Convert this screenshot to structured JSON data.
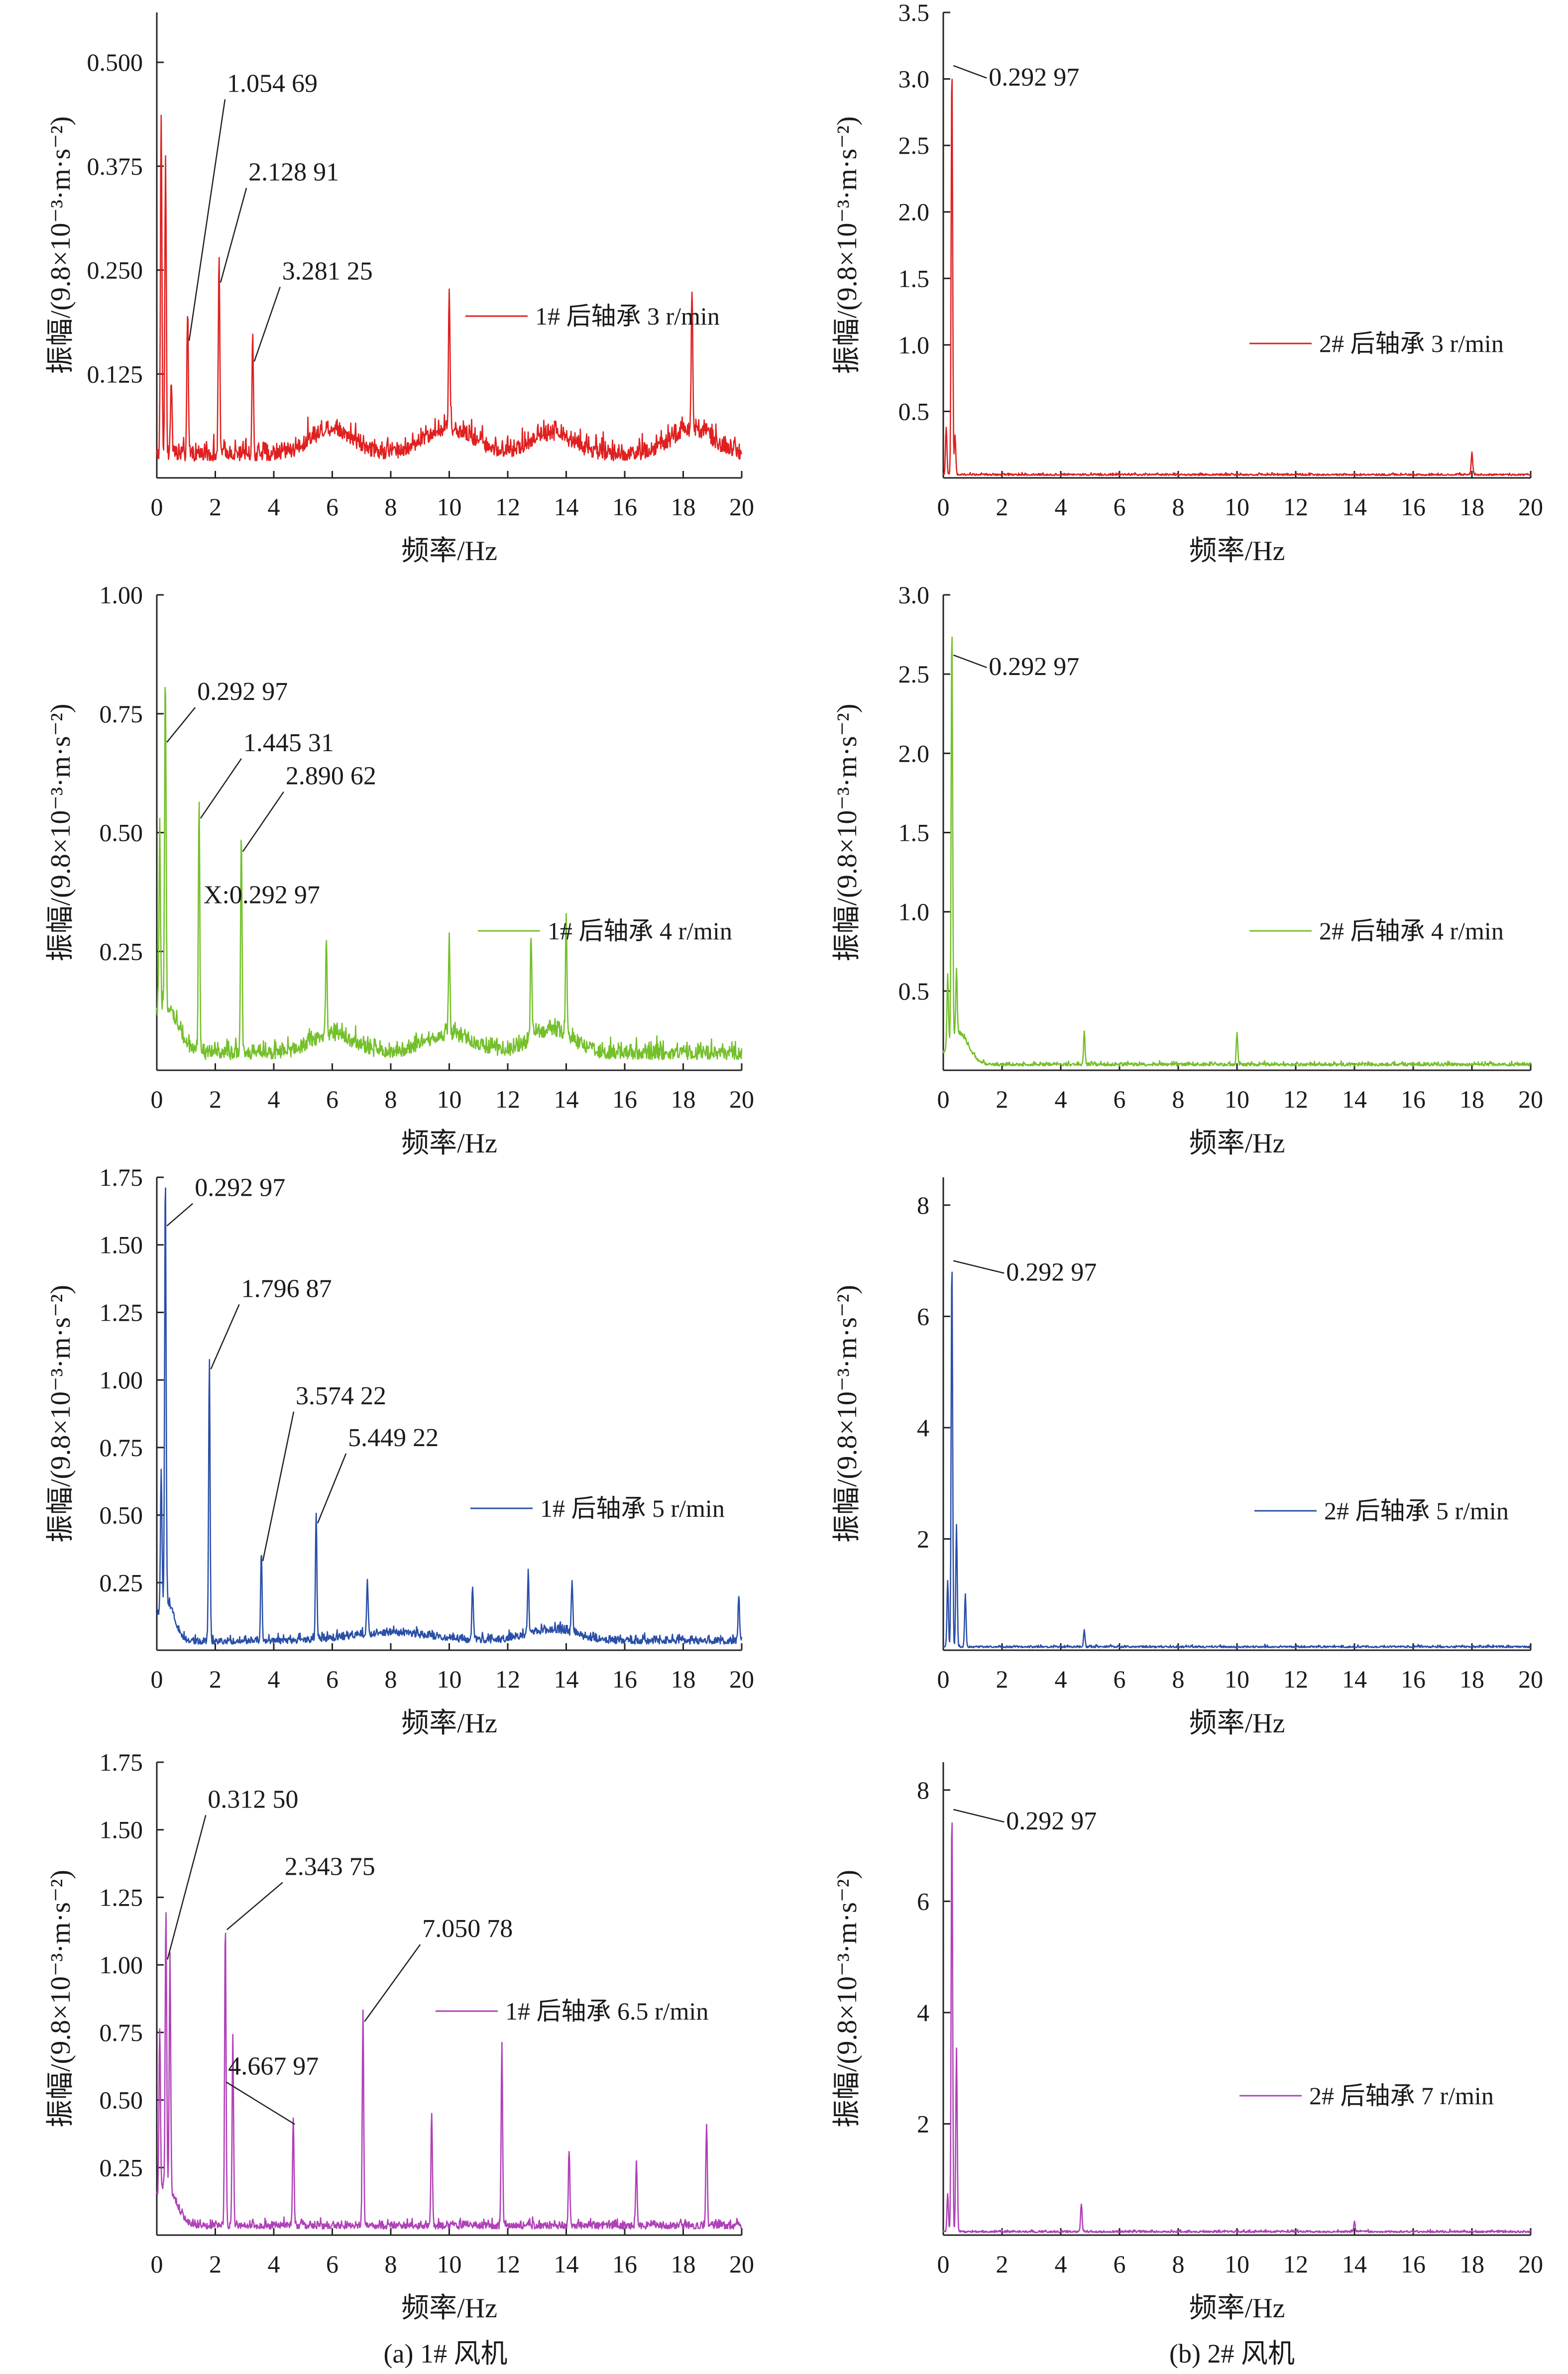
{
  "figure_captions": [
    "(a) 1# 风机",
    "(b) 2# 风机"
  ],
  "chart_data": [
    {
      "type": "line",
      "color": "#e02020",
      "xlabel": "频率/Hz",
      "ylabel": "振幅/(9.8×10⁻³·m·s⁻²)",
      "xlim": [
        0,
        20
      ],
      "ylim": [
        0,
        0.56
      ],
      "xticks": [
        0,
        2,
        4,
        6,
        8,
        10,
        12,
        14,
        16,
        18,
        20
      ],
      "yticks": [
        0.125,
        0.25,
        0.375,
        0.5
      ],
      "ytick_labels": [
        "0.125",
        "0.250",
        "0.375",
        "0.500"
      ],
      "legend": "1# 后轴承 3 r/min",
      "baseline": 0.045,
      "noise": 0.03,
      "peaks": [
        [
          0.15,
          0.41
        ],
        [
          0.3,
          0.36
        ],
        [
          0.5,
          0.09
        ],
        [
          1.05469,
          0.165
        ],
        [
          2.12891,
          0.235
        ],
        [
          3.28125,
          0.14
        ],
        [
          10.0,
          0.16
        ],
        [
          18.3,
          0.165
        ]
      ],
      "humps": [
        [
          6,
          0.03,
          1.0
        ],
        [
          10,
          0.03,
          1.2
        ],
        [
          13.5,
          0.025,
          1.0
        ],
        [
          18.3,
          0.03,
          1.0
        ]
      ],
      "annotations": [
        {
          "text": "1.054 69",
          "x": 1.05469,
          "y": 0.165
        },
        {
          "text": "2.128 91",
          "x": 2.12891,
          "y": 0.235
        },
        {
          "text": "3.281 25",
          "x": 3.28125,
          "y": 0.14
        }
      ]
    },
    {
      "type": "line",
      "color": "#e02020",
      "xlabel": "频率/Hz",
      "ylabel": "振幅/(9.8×10⁻³·m·s⁻²)",
      "xlim": [
        0,
        20
      ],
      "ylim": [
        0,
        3.5
      ],
      "xticks": [
        0,
        2,
        4,
        6,
        8,
        10,
        12,
        14,
        16,
        18,
        20
      ],
      "yticks": [
        0.5,
        1.0,
        1.5,
        2.0,
        2.5,
        3.0,
        3.5
      ],
      "ytick_labels": [
        "0.5",
        "1.0",
        "1.5",
        "2.0",
        "2.5",
        "3.0",
        "3.5"
      ],
      "legend": "2# 后轴承 3 r/min",
      "baseline": 0.04,
      "noise": 0.02,
      "peaks": [
        [
          0.1,
          0.35
        ],
        [
          0.29297,
          3.1
        ],
        [
          0.4,
          0.3
        ],
        [
          18.0,
          0.17
        ]
      ],
      "humps": [],
      "annotations": [
        {
          "text": "0.292 97",
          "x": 0.29297,
          "y": 3.1
        }
      ]
    },
    {
      "type": "line",
      "color": "#74c02a",
      "xlabel": "频率/Hz",
      "ylabel": "振幅/(9.8×10⁻³·m·s⁻²)",
      "xlim": [
        0,
        20
      ],
      "ylim": [
        0,
        1.0
      ],
      "xticks": [
        0,
        2,
        4,
        6,
        8,
        10,
        12,
        14,
        16,
        18,
        20
      ],
      "yticks": [
        0.25,
        0.5,
        0.75,
        1.0
      ],
      "ytick_labels": [
        "0.25",
        "0.50",
        "0.75",
        "1.00"
      ],
      "legend": "1# 后轴承 4 r/min",
      "baseline": 0.05,
      "noise": 0.045,
      "peaks": [
        [
          0.1,
          0.39
        ],
        [
          0.29297,
          0.69
        ],
        [
          1.44531,
          0.53
        ],
        [
          2.89062,
          0.46
        ],
        [
          5.8,
          0.2
        ],
        [
          10.0,
          0.2
        ],
        [
          12.8,
          0.22
        ],
        [
          14.0,
          0.25
        ]
      ],
      "humps": [
        [
          0.3,
          0.1,
          0.6
        ],
        [
          6,
          0.04,
          1.0
        ],
        [
          10,
          0.04,
          1.2
        ],
        [
          13.5,
          0.05,
          1.0
        ]
      ],
      "annotations": [
        {
          "text": "0.292 97",
          "x": 0.29297,
          "y": 0.69
        },
        {
          "text": "1.445 31",
          "x": 1.44531,
          "y": 0.53
        },
        {
          "text": "2.890 62",
          "x": 2.89062,
          "y": 0.46
        },
        {
          "text": "X:0.292 97",
          "x": 1.44531,
          "y": 0.43
        }
      ]
    },
    {
      "type": "line",
      "color": "#74c02a",
      "xlabel": "频率/Hz",
      "ylabel": "振幅/(9.8×10⁻³·m·s⁻²)",
      "xlim": [
        0,
        20
      ],
      "ylim": [
        0,
        3.0
      ],
      "xticks": [
        0,
        2,
        4,
        6,
        8,
        10,
        12,
        14,
        16,
        18,
        20
      ],
      "yticks": [
        0.5,
        1.0,
        1.5,
        2.0,
        2.5,
        3.0
      ],
      "ytick_labels": [
        "0.5",
        "1.0",
        "1.5",
        "2.0",
        "2.5",
        "3.0"
      ],
      "legend": "2# 后轴承 4 r/min",
      "baseline": 0.06,
      "noise": 0.03,
      "peaks": [
        [
          0.15,
          0.45
        ],
        [
          0.29297,
          2.62
        ],
        [
          0.45,
          0.4
        ],
        [
          4.8,
          0.2
        ],
        [
          10.0,
          0.2
        ]
      ],
      "humps": [
        [
          0.5,
          0.2,
          0.5
        ]
      ],
      "annotations": [
        {
          "text": "0.292 97",
          "x": 0.29297,
          "y": 2.62
        }
      ]
    },
    {
      "type": "line",
      "color": "#2a4fa8",
      "xlabel": "频率/Hz",
      "ylabel": "振幅/(9.8×10⁻³·m·s⁻²)",
      "xlim": [
        0,
        20
      ],
      "ylim": [
        0,
        1.75
      ],
      "xticks": [
        0,
        2,
        4,
        6,
        8,
        10,
        12,
        14,
        16,
        18,
        20
      ],
      "yticks": [
        0.25,
        0.5,
        0.75,
        1.0,
        1.25,
        1.5,
        1.75
      ],
      "ytick_labels": [
        "0.25",
        "0.50",
        "0.75",
        "1.00",
        "1.25",
        "1.50",
        "1.75"
      ],
      "legend": "1# 后轴承 5 r/min",
      "baseline": 0.05,
      "noise": 0.04,
      "peaks": [
        [
          0.15,
          0.5
        ],
        [
          0.29297,
          1.57
        ],
        [
          1.79687,
          1.04
        ],
        [
          3.57422,
          0.33
        ],
        [
          5.44922,
          0.47
        ],
        [
          7.2,
          0.2
        ],
        [
          10.8,
          0.2
        ],
        [
          12.7,
          0.22
        ],
        [
          14.2,
          0.2
        ],
        [
          19.9,
          0.17
        ]
      ],
      "humps": [
        [
          0.3,
          0.15,
          0.4
        ],
        [
          8,
          0.03,
          2.0
        ],
        [
          13.5,
          0.04,
          1.2
        ]
      ],
      "annotations": [
        {
          "text": "0.292 97",
          "x": 0.29297,
          "y": 1.57
        },
        {
          "text": "1.796 87",
          "x": 1.79687,
          "y": 1.04
        },
        {
          "text": "3.574 22",
          "x": 3.57422,
          "y": 0.33
        },
        {
          "text": "5.449 22",
          "x": 5.44922,
          "y": 0.47
        }
      ]
    },
    {
      "type": "line",
      "color": "#2a4fa8",
      "xlabel": "频率/Hz",
      "ylabel": "振幅/(9.8×10⁻³·m·s⁻²)",
      "xlim": [
        0,
        20
      ],
      "ylim": [
        0,
        8.5
      ],
      "xticks": [
        0,
        2,
        4,
        6,
        8,
        10,
        12,
        14,
        16,
        18,
        20
      ],
      "yticks": [
        2,
        4,
        6,
        8
      ],
      "ytick_labels": [
        "2",
        "4",
        "6",
        "8"
      ],
      "legend": "2# 后轴承 5 r/min",
      "baseline": 0.1,
      "noise": 0.05,
      "peaks": [
        [
          0.15,
          1.2
        ],
        [
          0.29297,
          7.0
        ],
        [
          0.45,
          2.2
        ],
        [
          0.75,
          0.95
        ],
        [
          4.8,
          0.3
        ]
      ],
      "humps": [],
      "annotations": [
        {
          "text": "0.292 97",
          "x": 0.29297,
          "y": 7.0
        }
      ]
    },
    {
      "type": "line",
      "color": "#b040b8",
      "xlabel": "频率/Hz",
      "ylabel": "振幅/(9.8×10⁻³·m·s⁻²)",
      "xlim": [
        0,
        20
      ],
      "ylim": [
        0,
        1.75
      ],
      "xticks": [
        0,
        2,
        4,
        6,
        8,
        10,
        12,
        14,
        16,
        18,
        20
      ],
      "yticks": [
        0.25,
        0.5,
        0.75,
        1.0,
        1.25,
        1.5,
        1.75
      ],
      "ytick_labels": [
        "0.25",
        "0.50",
        "0.75",
        "1.00",
        "1.25",
        "1.50",
        "1.75"
      ],
      "legend": "1# 后轴承 6.5 r/min",
      "baseline": 0.05,
      "noise": 0.04,
      "peaks": [
        [
          0.1,
          0.6
        ],
        [
          0.3125,
          1.02
        ],
        [
          0.45,
          0.85
        ],
        [
          2.34375,
          1.13
        ],
        [
          2.6,
          0.7
        ],
        [
          4.66797,
          0.41
        ],
        [
          7.05078,
          0.79
        ],
        [
          9.4,
          0.42
        ],
        [
          11.8,
          0.67
        ],
        [
          14.1,
          0.28
        ],
        [
          16.4,
          0.24
        ],
        [
          18.8,
          0.38
        ]
      ],
      "humps": [
        [
          0.3,
          0.15,
          0.5
        ]
      ],
      "annotations": [
        {
          "text": "0.312 50",
          "x": 0.3125,
          "y": 1.02
        },
        {
          "text": "2.343 75",
          "x": 2.34375,
          "y": 1.13
        },
        {
          "text": "4.667 97",
          "x": 4.66797,
          "y": 0.41
        },
        {
          "text": "7.050 78",
          "x": 7.05078,
          "y": 0.79
        }
      ]
    },
    {
      "type": "line",
      "color": "#b040b8",
      "xlabel": "频率/Hz",
      "ylabel": "振幅/(9.8×10⁻³·m·s⁻²)",
      "xlim": [
        0,
        20
      ],
      "ylim": [
        0,
        8.5
      ],
      "xticks": [
        0,
        2,
        4,
        6,
        8,
        10,
        12,
        14,
        16,
        18,
        20
      ],
      "yticks": [
        2,
        4,
        6,
        8
      ],
      "ytick_labels": [
        "2",
        "4",
        "6",
        "8"
      ],
      "legend": "2# 后轴承 7 r/min",
      "baseline": 0.1,
      "noise": 0.05,
      "peaks": [
        [
          0.15,
          0.7
        ],
        [
          0.29297,
          7.65
        ],
        [
          0.45,
          3.3
        ],
        [
          4.7,
          0.5
        ],
        [
          14.0,
          0.18
        ]
      ],
      "humps": [],
      "annotations": [
        {
          "text": "0.292 97",
          "x": 0.29297,
          "y": 7.65
        }
      ]
    }
  ]
}
